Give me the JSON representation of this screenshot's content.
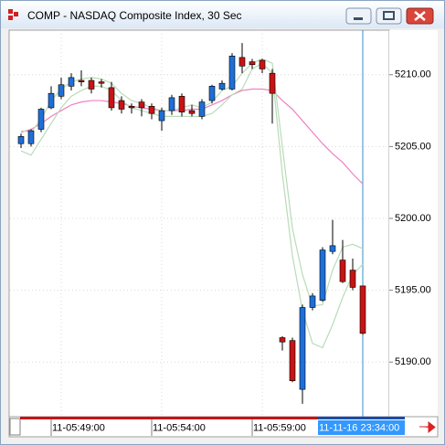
{
  "chart_data": {
    "type": "candlestick",
    "title": "COMP - NASDAQ Composite Index, 30 Sec",
    "categories": [
      null,
      null,
      null,
      null,
      "11-05:49:00",
      null,
      null,
      null,
      null,
      null,
      null,
      null,
      null,
      null,
      "11-05:54:00",
      null,
      null,
      null,
      null,
      null,
      null,
      null,
      null,
      null,
      "11-05:59:00",
      null,
      null,
      null,
      null,
      null,
      null,
      null,
      null,
      null,
      "11-11-16 23:34:00"
    ],
    "open": [
      5205.2,
      5205.2,
      5206.2,
      5207.7,
      5208.5,
      5209.2,
      5209.6,
      5209.6,
      5209.5,
      5209.1,
      5208.2,
      5207.8,
      5208.1,
      5207.8,
      5206.8,
      5207.5,
      5208.5,
      5207.5,
      5207.1,
      5208.2,
      5209.0,
      5209.0,
      5211.2,
      5210.9,
      5211.0,
      5210.1,
      5191.7,
      5191.5,
      5188.1,
      5193.8,
      5194.3,
      5197.7,
      5197.1,
      5196.4,
      5195.3
    ],
    "high": [
      5205.9,
      5206.2,
      5207.7,
      5209.2,
      5209.8,
      5210.1,
      5210.3,
      5209.8,
      5209.7,
      5209.5,
      5208.5,
      5208.0,
      5208.3,
      5208.0,
      5207.7,
      5208.6,
      5208.7,
      5207.9,
      5208.3,
      5209.3,
      5209.6,
      5211.5,
      5212.2,
      5211.1,
      5211.1,
      5210.4,
      5191.8,
      5191.7,
      5194.0,
      5194.8,
      5198.0,
      5199.9,
      5198.5,
      5197.2,
      5195.3
    ],
    "low": [
      5204.9,
      5205.0,
      5206.0,
      5207.6,
      5208.3,
      5208.9,
      5209.2,
      5208.7,
      5209.1,
      5207.5,
      5207.3,
      5207.3,
      5207.1,
      5206.9,
      5206.1,
      5207.2,
      5207.1,
      5207.1,
      5206.9,
      5208.0,
      5208.9,
      5208.9,
      5210.1,
      5210.4,
      5210.1,
      5206.6,
      5190.8,
      5188.6,
      5187.1,
      5193.6,
      5194.2,
      5197.5,
      5195.5,
      5195.0,
      5191.9
    ],
    "close": [
      5205.7,
      5206.1,
      5207.6,
      5208.7,
      5209.3,
      5209.8,
      5209.5,
      5209.0,
      5209.4,
      5207.7,
      5207.6,
      5207.7,
      5207.7,
      5207.3,
      5207.5,
      5208.4,
      5207.4,
      5207.3,
      5208.1,
      5209.2,
      5209.4,
      5211.3,
      5210.6,
      5210.7,
      5210.4,
      5208.7,
      5191.4,
      5188.7,
      5193.8,
      5194.6,
      5197.8,
      5198.1,
      5195.6,
      5195.2,
      5192.0
    ],
    "up_color": "#1e6fd8",
    "down_color": "#c81414",
    "lines": [
      {
        "color": "#f080c0",
        "values": [
          5206.0,
          5206.2,
          5206.6,
          5207.1,
          5207.5,
          5207.9,
          5208.1,
          5208.2,
          5208.2,
          5208.1,
          5208.0,
          5207.8,
          5207.7,
          5207.6,
          5207.5,
          5207.5,
          5207.5,
          5207.6,
          5207.6,
          5207.9,
          5208.2,
          5208.6,
          5208.9,
          5209.0,
          5209.0,
          5208.9,
          5208.2,
          5207.6,
          5206.8,
          5206.0,
          5205.2,
          5204.5,
          5203.9,
          5203.1,
          5202.4
        ]
      },
      {
        "color": "#b8dcb8",
        "values": [
          5206.1,
          5206.0,
          5206.9,
          5208.2,
          5209.0,
          5209.5,
          5209.7,
          5209.8,
          5209.7,
          5209.4,
          5208.7,
          5208.2,
          5208.0,
          5207.7,
          5207.5,
          5207.5,
          5207.7,
          5207.9,
          5207.7,
          5208.1,
          5208.9,
          5209.2,
          5210.1,
          5210.8,
          5211.1,
          5210.8,
          5205.0,
          5199.3,
          5196.1,
          5193.9,
          5194.0,
          5196.4,
          5198.0,
          5198.2,
          5197.9
        ]
      },
      {
        "color": "#b8dcb8",
        "values": [
          5204.7,
          5204.4,
          5205.5,
          5206.6,
          5207.7,
          5208.5,
          5208.9,
          5209.2,
          5209.2,
          5208.9,
          5208.2,
          5207.7,
          5207.5,
          5207.3,
          5207.1,
          5207.1,
          5207.1,
          5207.1,
          5207.1,
          5207.3,
          5207.9,
          5208.6,
          5209.0,
          5210.4,
          5210.8,
          5210.1,
          5203.1,
          5197.4,
          5193.6,
          5191.3,
          5191.0,
          5192.6,
          5194.5,
          5196.1,
          5196.8
        ]
      }
    ],
    "ylim": [
      5186.2,
      5213.1
    ],
    "yticks": [
      {
        "value": 5190,
        "label": "5190.00"
      },
      {
        "value": 5195,
        "label": "5195.00"
      },
      {
        "value": 5200,
        "label": "5200.00"
      },
      {
        "value": 5205,
        "label": "5205.00"
      },
      {
        "value": 5210,
        "label": "5210.00"
      }
    ],
    "grid": true,
    "cursor_color": "#3a8fc8"
  }
}
